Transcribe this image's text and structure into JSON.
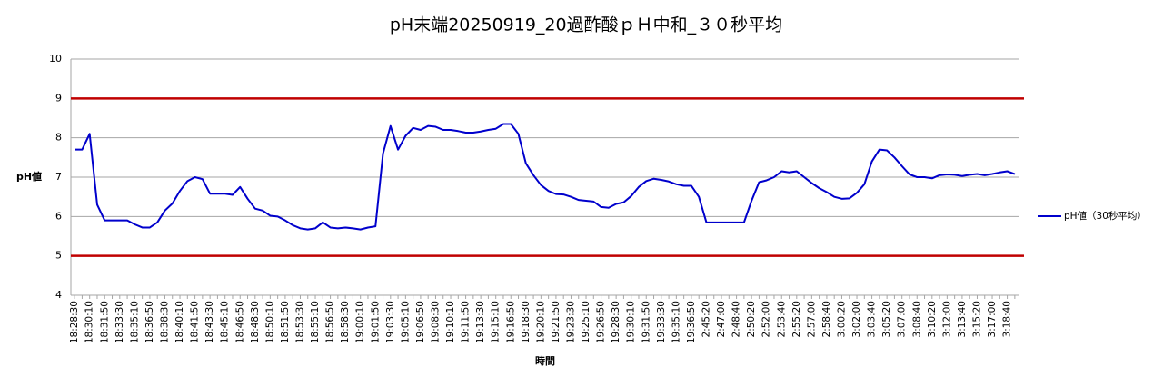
{
  "chart_data": {
    "type": "line",
    "title": "pH末端20250919_20過酢酸ｐＨ中和_３０秒平均",
    "y_label": "pH値",
    "x_label": "時間",
    "categories": [
      "18:28:30",
      null,
      "18:30:10",
      null,
      "18:31:50",
      null,
      "18:33:30",
      null,
      "18:35:10",
      null,
      "18:36:50",
      null,
      "18:38:30",
      null,
      "18:40:10",
      null,
      "18:41:50",
      null,
      "18:43:30",
      null,
      "18:45:10",
      null,
      "18:46:50",
      null,
      "18:48:30",
      null,
      "18:50:10",
      null,
      "18:51:50",
      null,
      "18:53:30",
      null,
      "18:55:10",
      null,
      "18:56:50",
      null,
      "18:58:30",
      null,
      "19:00:10",
      null,
      "19:01:50",
      null,
      "19:03:30",
      null,
      "19:05:10",
      null,
      "19:06:50",
      null,
      "19:08:30",
      null,
      "19:10:10",
      null,
      "19:11:50",
      null,
      "19:13:30",
      null,
      "19:15:10",
      null,
      "19:16:50",
      null,
      "19:18:30",
      null,
      "19:20:10",
      null,
      "19:21:50",
      null,
      "19:23:30",
      null,
      "19:25:10",
      null,
      "19:26:50",
      null,
      "19:28:30",
      null,
      "19:30:10",
      null,
      "19:31:50",
      null,
      "19:33:30",
      null,
      "19:35:10",
      null,
      "19:36:50",
      null,
      "2:45:20",
      null,
      "2:47:00",
      null,
      "2:48:40",
      null,
      "2:50:20",
      null,
      "2:52:00",
      null,
      "2:53:40",
      null,
      "2:55:20",
      null,
      "2:57:00",
      null,
      "2:58:40",
      null,
      "3:00:20",
      null,
      "3:02:00",
      null,
      "3:03:40",
      null,
      "3:05:20",
      null,
      "3:07:00",
      null,
      "3:08:40",
      null,
      "3:10:20",
      null,
      "3:12:00",
      null,
      "3:13:40",
      null,
      "3:15:20",
      null,
      "3:17:00",
      null,
      "3:18:40",
      null
    ],
    "series": [
      {
        "name": "pH値（30秒平均）",
        "color": "#0000cc",
        "values": [
          7.7,
          7.7,
          8.1,
          6.3,
          5.9,
          5.9,
          5.9,
          5.9,
          5.8,
          5.72,
          5.72,
          5.85,
          6.15,
          6.33,
          6.65,
          6.9,
          7.0,
          6.95,
          6.58,
          6.58,
          6.58,
          6.55,
          6.75,
          6.45,
          6.2,
          6.15,
          6.02,
          6.0,
          5.9,
          5.78,
          5.7,
          5.67,
          5.7,
          5.85,
          5.72,
          5.7,
          5.72,
          5.7,
          5.67,
          5.72,
          5.75,
          7.6,
          8.3,
          7.7,
          8.05,
          8.25,
          8.2,
          8.3,
          8.28,
          8.2,
          8.2,
          8.17,
          8.13,
          8.13,
          8.16,
          8.2,
          8.23,
          8.35,
          8.35,
          8.1,
          7.35,
          7.05,
          6.8,
          6.65,
          6.57,
          6.56,
          6.5,
          6.42,
          6.4,
          6.38,
          6.24,
          6.22,
          6.32,
          6.36,
          6.52,
          6.75,
          6.9,
          6.96,
          6.93,
          6.89,
          6.82,
          6.78,
          6.78,
          6.5,
          5.85,
          5.85,
          5.85,
          5.85,
          5.85,
          5.85,
          6.4,
          6.87,
          6.92,
          7.0,
          7.15,
          7.12,
          7.15,
          7.0,
          6.85,
          6.72,
          6.62,
          6.5,
          6.45,
          6.46,
          6.6,
          6.82,
          7.4,
          7.7,
          7.68,
          7.5,
          7.28,
          7.07,
          7.0,
          7.0,
          6.97,
          7.05,
          7.07,
          7.06,
          7.03,
          7.06,
          7.08,
          7.05,
          7.08,
          7.12,
          7.15,
          7.08
        ]
      }
    ],
    "limit_lines": [
      9,
      5
    ],
    "limit_color": "#c00000",
    "ylim": [
      4,
      10
    ],
    "yticks": [
      4,
      5,
      6,
      7,
      8,
      9,
      10
    ],
    "grid": true,
    "legend": "right"
  }
}
